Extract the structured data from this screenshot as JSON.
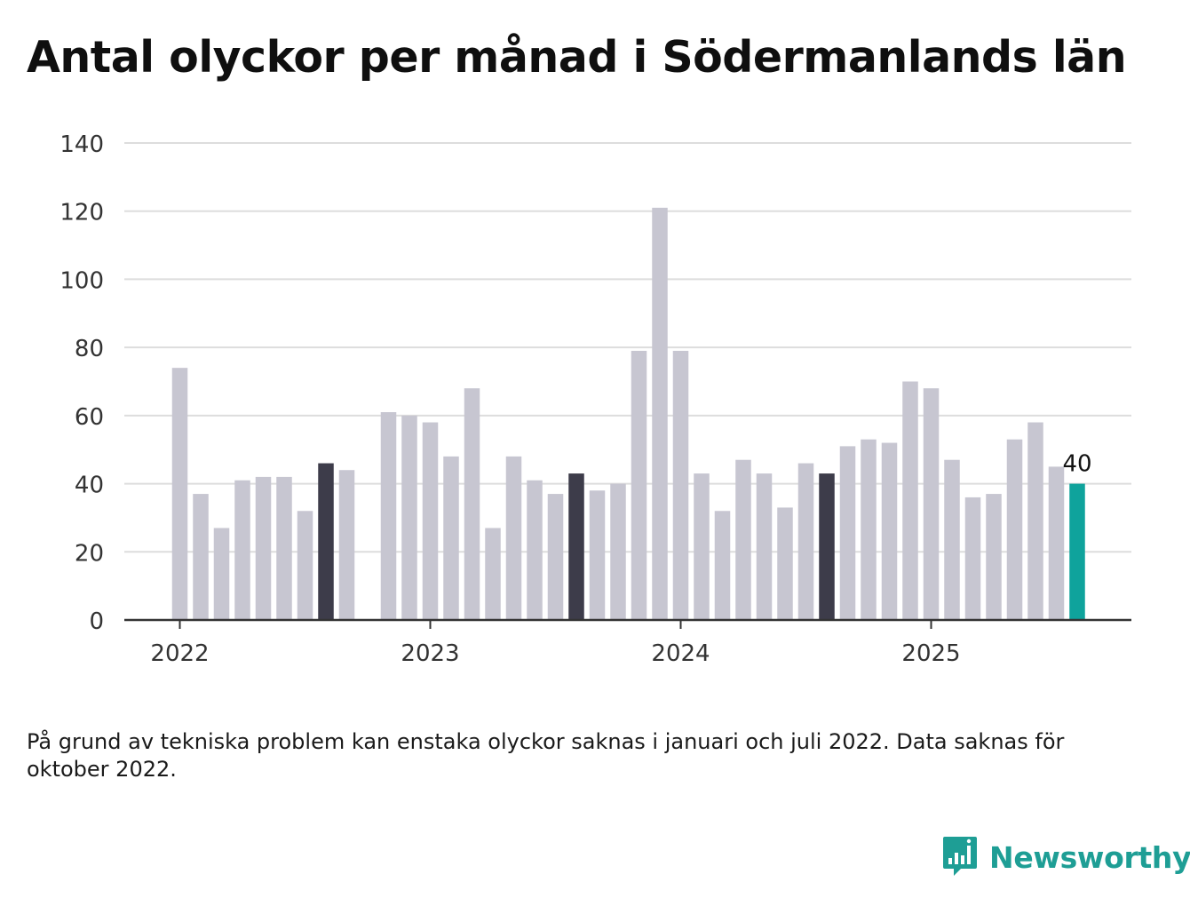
{
  "title": "Antal olyckor per månad i Södermanlands län",
  "note": "På grund av tekniska problem kan enstaka olyckor saknas i januari och juli 2022. Data saknas för oktober 2022.",
  "brand": {
    "name": "Newsworthy",
    "icon": "newsworthy-logo-icon"
  },
  "colors": {
    "bar": "#c7c6d1",
    "highlight": "#3d3c4a",
    "latest": "#0fa39c",
    "grid": "#dddddd",
    "axis": "#333333"
  },
  "chart_data": {
    "type": "bar",
    "x_type": "month",
    "ylim": [
      0,
      140
    ],
    "y_ticks": [
      "0",
      "20",
      "40",
      "60",
      "80",
      "100",
      "120",
      "140"
    ],
    "x_ticks": [
      "2022",
      "2023",
      "2024",
      "2025"
    ],
    "grid": true,
    "categories": [
      "2022-01",
      "2022-02",
      "2022-03",
      "2022-04",
      "2022-05",
      "2022-06",
      "2022-07",
      "2022-08",
      "2022-09",
      "2022-10",
      "2022-11",
      "2022-12",
      "2023-01",
      "2023-02",
      "2023-03",
      "2023-04",
      "2023-05",
      "2023-06",
      "2023-07",
      "2023-08",
      "2023-09",
      "2023-10",
      "2023-11",
      "2023-12",
      "2024-01",
      "2024-02",
      "2024-03",
      "2024-04",
      "2024-05",
      "2024-06",
      "2024-07",
      "2024-08",
      "2024-09",
      "2024-10",
      "2024-11",
      "2024-12",
      "2025-01",
      "2025-02",
      "2025-03",
      "2025-04",
      "2025-05",
      "2025-06",
      "2025-07",
      "2025-08"
    ],
    "values": [
      74,
      37,
      27,
      41,
      42,
      42,
      32,
      46,
      44,
      null,
      61,
      60,
      58,
      48,
      68,
      27,
      48,
      41,
      37,
      43,
      38,
      40,
      79,
      121,
      79,
      43,
      32,
      47,
      43,
      33,
      46,
      43,
      51,
      53,
      52,
      70,
      68,
      47,
      36,
      37,
      53,
      58,
      45,
      40
    ],
    "highlighted": [
      "2022-08",
      "2023-08",
      "2024-08"
    ],
    "latest": {
      "category": "2025-08",
      "value": 40,
      "label": "40"
    }
  }
}
